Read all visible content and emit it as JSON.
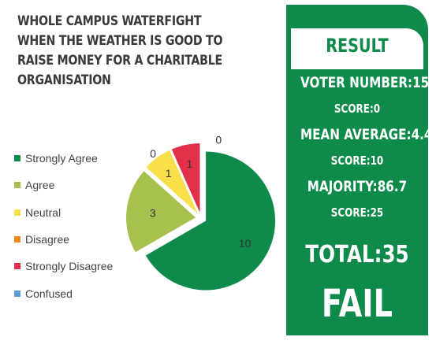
{
  "title": "WHOLE CAMPUS WATERFIGHT WHEN THE WEATHER IS GOOD TO RAISE MONEY FOR A CHARITABLE ORGANISATION",
  "chart_data": {
    "type": "pie",
    "title": "WHOLE CAMPUS WATERFIGHT WHEN THE WEATHER IS GOOD TO RAISE MONEY FOR A CHARITABLE ORGANISATION",
    "legend_position": "left",
    "categories": [
      "Strongly Agree",
      "Agree",
      "Neutral",
      "Disagree",
      "Strongly Disagree",
      "Confused"
    ],
    "values": [
      10,
      3,
      1,
      0,
      1,
      0
    ],
    "colors": [
      "#0e8a4a",
      "#a6c14e",
      "#f7e04a",
      "#ef8a1e",
      "#e0304a",
      "#5b9bd5"
    ]
  },
  "result": {
    "heading": "RESULT",
    "lines": [
      {
        "text": "VOTER NUMBER:15",
        "size": "big"
      },
      {
        "text": "SCORE:0",
        "size": "small"
      },
      {
        "text": "MEAN AVERAGE:4.4",
        "size": "big"
      },
      {
        "text": "SCORE:10",
        "size": "small"
      },
      {
        "text": "MAJORITY:86.7",
        "size": "big"
      },
      {
        "text": "SCORE:25",
        "size": "small"
      }
    ],
    "total": "TOTAL:35",
    "verdict": "FAIL"
  }
}
